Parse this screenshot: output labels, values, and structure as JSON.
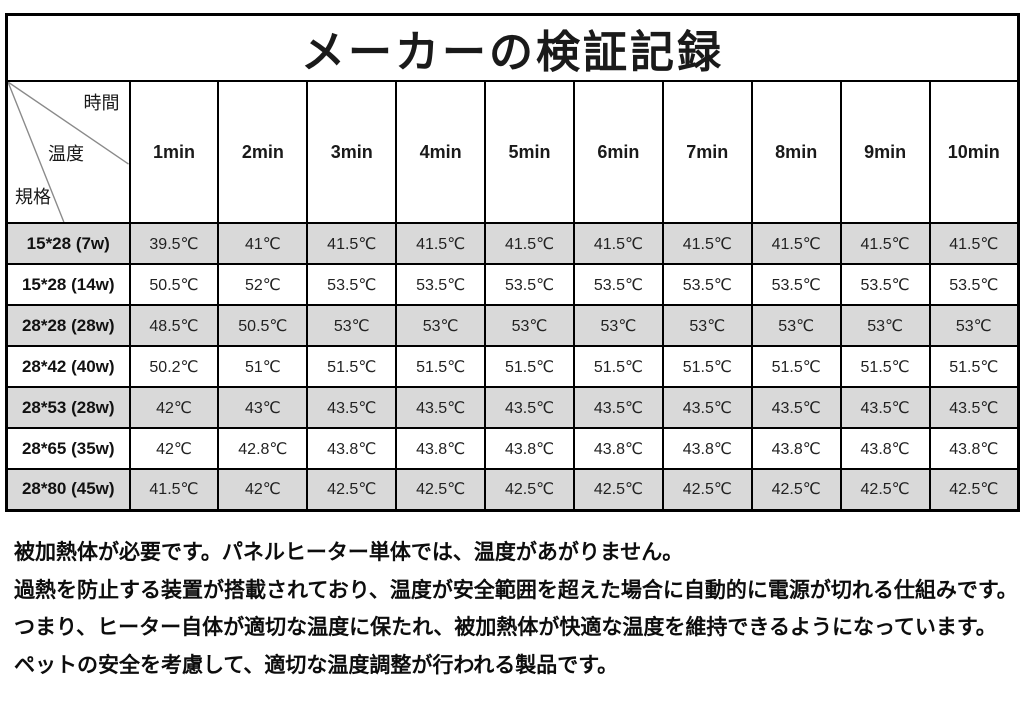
{
  "page_title": "メーカーの検証記録",
  "table": {
    "corner": {
      "time": "時間",
      "temperature": "温度",
      "spec": "規格"
    },
    "time_headers": [
      "1min",
      "2min",
      "3min",
      "4min",
      "5min",
      "6min",
      "7min",
      "8min",
      "9min",
      "10min"
    ],
    "rows": [
      {
        "label": "15*28 (7w)",
        "values": [
          "39.5℃",
          "41℃",
          "41.5℃",
          "41.5℃",
          "41.5℃",
          "41.5℃",
          "41.5℃",
          "41.5℃",
          "41.5℃",
          "41.5℃"
        ]
      },
      {
        "label": "15*28 (14w)",
        "values": [
          "50.5℃",
          "52℃",
          "53.5℃",
          "53.5℃",
          "53.5℃",
          "53.5℃",
          "53.5℃",
          "53.5℃",
          "53.5℃",
          "53.5℃"
        ]
      },
      {
        "label": "28*28 (28w)",
        "values": [
          "48.5℃",
          "50.5℃",
          "53℃",
          "53℃",
          "53℃",
          "53℃",
          "53℃",
          "53℃",
          "53℃",
          "53℃"
        ]
      },
      {
        "label": "28*42 (40w)",
        "values": [
          "50.2℃",
          "51℃",
          "51.5℃",
          "51.5℃",
          "51.5℃",
          "51.5℃",
          "51.5℃",
          "51.5℃",
          "51.5℃",
          "51.5℃"
        ]
      },
      {
        "label": "28*53 (28w)",
        "values": [
          "42℃",
          "43℃",
          "43.5℃",
          "43.5℃",
          "43.5℃",
          "43.5℃",
          "43.5℃",
          "43.5℃",
          "43.5℃",
          "43.5℃"
        ]
      },
      {
        "label": "28*65 (35w)",
        "values": [
          "42℃",
          "42.8℃",
          "43.8℃",
          "43.8℃",
          "43.8℃",
          "43.8℃",
          "43.8℃",
          "43.8℃",
          "43.8℃",
          "43.8℃"
        ]
      },
      {
        "label": "28*80 (45w)",
        "values": [
          "41.5℃",
          "42℃",
          "42.5℃",
          "42.5℃",
          "42.5℃",
          "42.5℃",
          "42.5℃",
          "42.5℃",
          "42.5℃",
          "42.5℃"
        ]
      }
    ]
  },
  "notes": [
    "被加熱体が必要です。パネルヒーター単体では、温度があがりません。",
    "過熱を防止する装置が搭載されており、温度が安全範囲を超えた場合に自動的に電源が切れる仕組みです。",
    "つまり、ヒーター自体が適切な温度に保たれ、被加熱体が快適な温度を維持できるようになっています。",
    "ペットの安全を考慮して、適切な温度調整が行われる製品です。"
  ],
  "colors": {
    "row_shade": "#d9d9d9",
    "border": "#000000",
    "background": "#ffffff",
    "diagonal_line": "#8a8a8a"
  }
}
